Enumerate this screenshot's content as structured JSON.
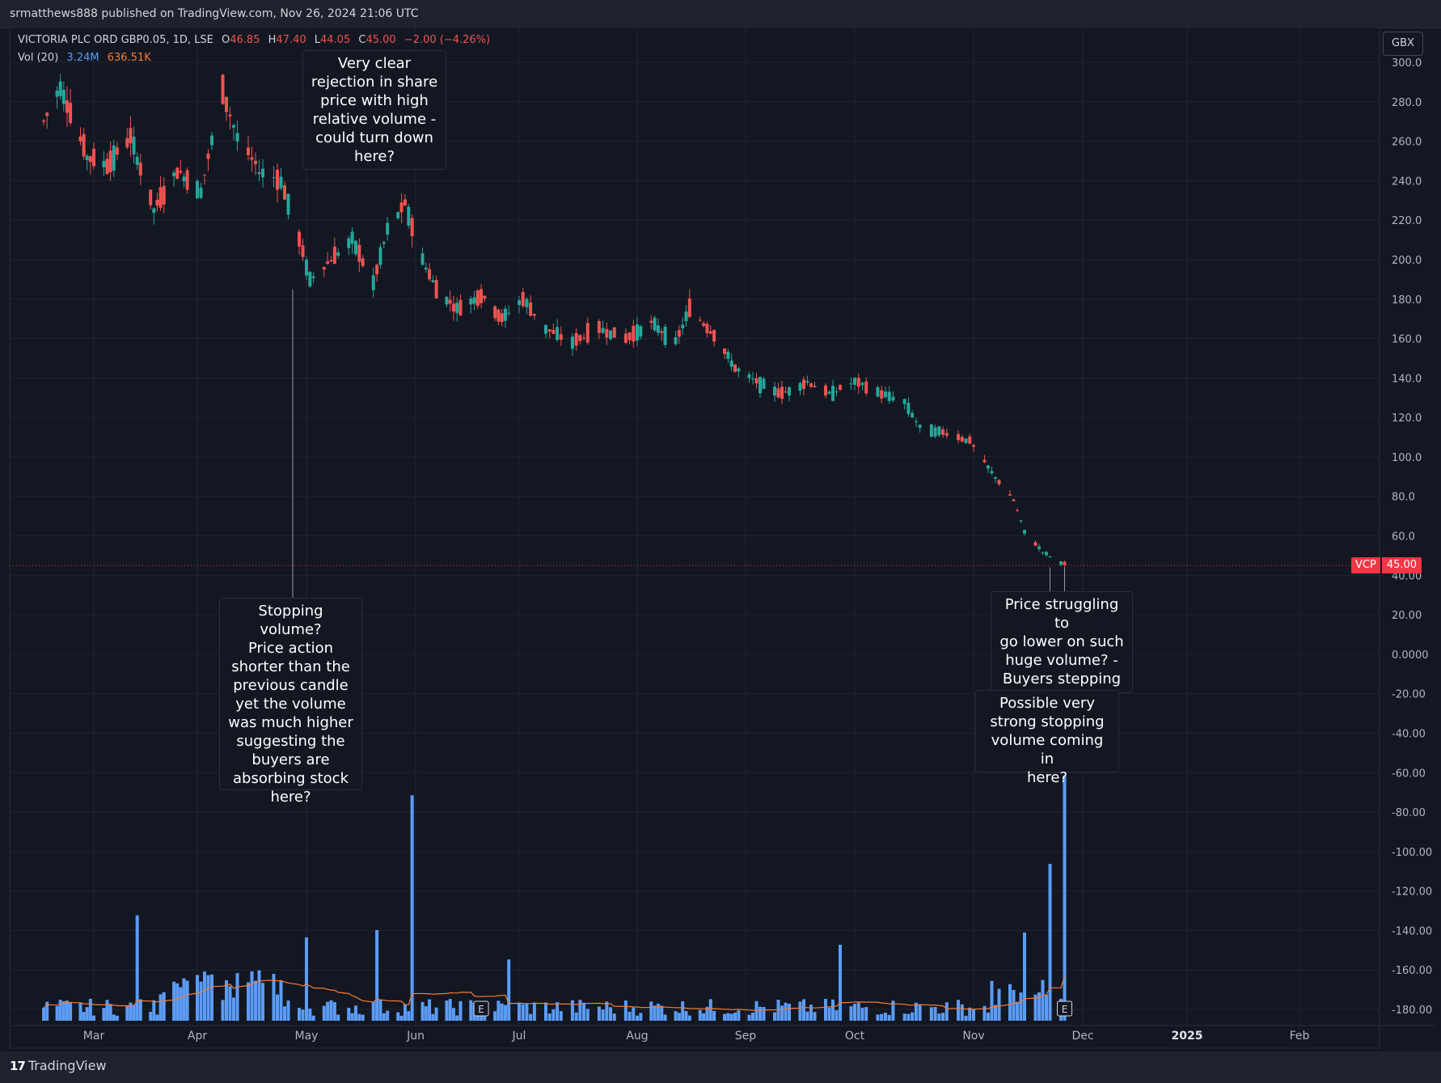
{
  "header": {
    "publisher_line": "srmatthews888 published on TradingView.com, Nov 26, 2024 21:06 UTC"
  },
  "legend": {
    "symbol": "VICTORIA PLC ORD GBP0.05, 1D, LSE",
    "o_label": "O",
    "o_value": "46.85",
    "h_label": "H",
    "h_value": "47.40",
    "l_label": "L",
    "l_value": "44.05",
    "c_label": "C",
    "c_value": "45.00",
    "change": "−2.00 (−4.26%)",
    "vol_label": "Vol (20)",
    "vol_value": "3.24M",
    "vol_ma_value": "636.51K"
  },
  "currency_button": "GBX",
  "price_tag": {
    "symbol": "VCP",
    "value": "45.00"
  },
  "footer": {
    "brand": "TradingView",
    "brand_mark": "17"
  },
  "annotations": [
    {
      "id": "rejection",
      "text": "Very clear\nrejection in share\nprice with high\nrelative volume -\ncould turn down\nhere?"
    },
    {
      "id": "stopping",
      "text": "Stopping volume?\nPrice action\nshorter than the\nprevious candle\nyet the volume\nwas much higher\nsuggesting the\nbuyers are\nabsorbing stock\nhere?"
    },
    {
      "id": "struggling",
      "text": "Price struggling to\ngo lower on such\nhuge volume?  -\nBuyers stepping\nin?"
    },
    {
      "id": "possible",
      "text": "Possible very\nstrong stopping\nvolume coming in\nhere?"
    }
  ],
  "colors": {
    "background": "#131722",
    "up": "#26a69a",
    "down": "#ef5350",
    "volume": "#5b9cf6",
    "volume_ma": "#f57c36",
    "grid": "#1f2430",
    "price_line": "#f23645"
  },
  "chart_data": {
    "type": "candlestick",
    "title": "VICTORIA PLC ORD GBP0.05, 1D, LSE",
    "currency": "GBX",
    "ylim": [
      -190,
      310
    ],
    "y_ticks": [
      "300.0",
      "280.0",
      "260.0",
      "240.0",
      "220.0",
      "200.0",
      "180.0",
      "160.0",
      "140.0",
      "120.0",
      "100.0",
      "80.0",
      "60.0",
      "40.00",
      "20.00",
      "0.0000",
      "-20.00",
      "-40.00",
      "-60.00",
      "-80.00",
      "-100.00",
      "-120.00",
      "-140.00",
      "-160.00",
      "-180.00"
    ],
    "x_ticks": [
      "Mar",
      "Apr",
      "May",
      "Jun",
      "Jul",
      "Aug",
      "Sep",
      "Oct",
      "Nov",
      "Dec",
      "2025",
      "Feb"
    ],
    "x_ticks_bold": [
      "2025"
    ],
    "last_price": 45.0,
    "earnings_markers": [
      "E",
      "E"
    ],
    "price_path_description_points": [
      [
        "2024-02-15",
        270
      ],
      [
        "2024-02-20",
        288
      ],
      [
        "2024-02-28",
        252
      ],
      [
        "2024-03-05",
        248
      ],
      [
        "2024-03-12",
        262
      ],
      [
        "2024-03-19",
        225
      ],
      [
        "2024-03-26",
        245
      ],
      [
        "2024-04-02",
        235
      ],
      [
        "2024-04-08",
        285
      ],
      [
        "2024-04-12",
        262
      ],
      [
        "2024-04-18",
        245
      ],
      [
        "2024-04-24",
        240
      ],
      [
        "2024-04-29",
        210
      ],
      [
        "2024-05-02",
        190
      ],
      [
        "2024-05-08",
        200
      ],
      [
        "2024-05-14",
        210
      ],
      [
        "2024-05-20",
        188
      ],
      [
        "2024-05-24",
        215
      ],
      [
        "2024-05-29",
        228
      ],
      [
        "2024-06-03",
        200
      ],
      [
        "2024-06-07",
        185
      ],
      [
        "2024-06-13",
        175
      ],
      [
        "2024-06-20",
        182
      ],
      [
        "2024-06-26",
        170
      ],
      [
        "2024-07-02",
        180
      ],
      [
        "2024-07-08",
        165
      ],
      [
        "2024-07-15",
        158
      ],
      [
        "2024-07-22",
        165
      ],
      [
        "2024-07-29",
        160
      ],
      [
        "2024-08-05",
        168
      ],
      [
        "2024-08-12",
        158
      ],
      [
        "2024-08-16",
        175
      ],
      [
        "2024-08-23",
        162
      ],
      [
        "2024-08-29",
        145
      ],
      [
        "2024-09-04",
        138
      ],
      [
        "2024-09-11",
        132
      ],
      [
        "2024-09-18",
        138
      ],
      [
        "2024-09-24",
        132
      ],
      [
        "2024-10-01",
        138
      ],
      [
        "2024-10-08",
        132
      ],
      [
        "2024-10-14",
        128
      ],
      [
        "2024-10-18",
        115
      ],
      [
        "2024-10-25",
        112
      ],
      [
        "2024-10-31",
        108
      ],
      [
        "2024-11-06",
        92
      ],
      [
        "2024-11-12",
        78
      ],
      [
        "2024-11-15",
        62
      ],
      [
        "2024-11-20",
        52
      ],
      [
        "2024-11-26",
        45
      ]
    ],
    "volume_spikes_relative": [
      [
        "2024-03-14",
        0.43
      ],
      [
        "2024-05-01",
        0.34
      ],
      [
        "2024-05-21",
        0.37
      ],
      [
        "2024-05-31",
        0.92
      ],
      [
        "2024-06-28",
        0.25
      ],
      [
        "2024-09-27",
        0.31
      ],
      [
        "2024-11-15",
        0.36
      ],
      [
        "2024-11-22",
        0.64
      ],
      [
        "2024-11-26",
        1.0
      ]
    ]
  }
}
